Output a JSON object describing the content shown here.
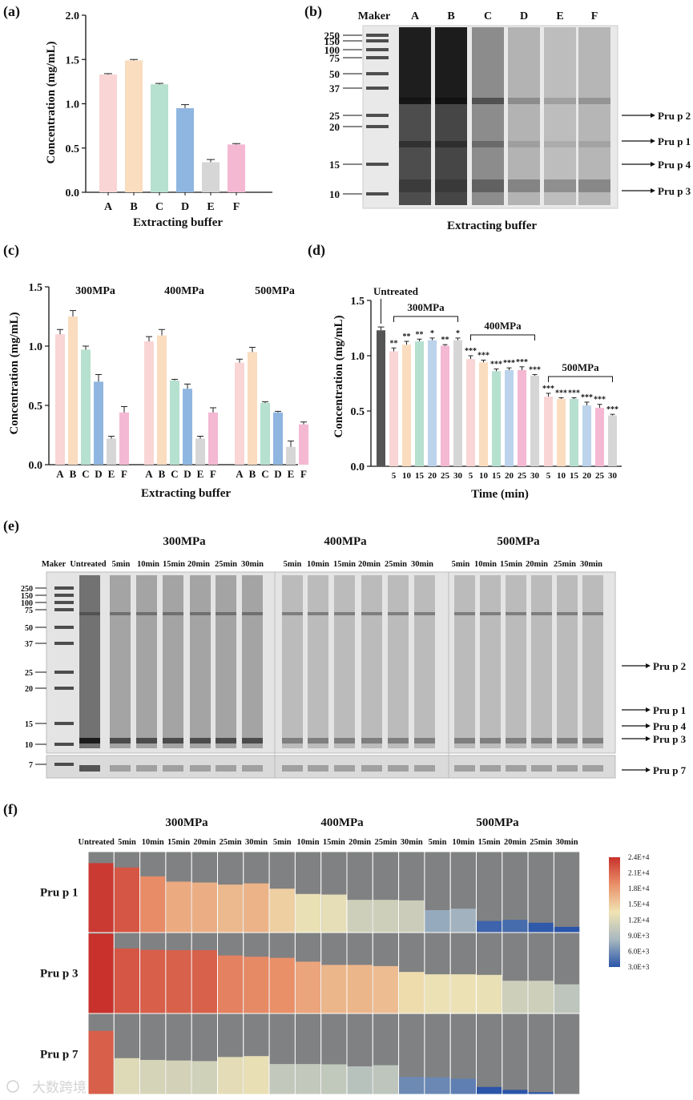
{
  "panels": {
    "a": {
      "label": "(a)"
    },
    "b": {
      "label": "(b)"
    },
    "c": {
      "label": "(c)"
    },
    "d": {
      "label": "(d)"
    },
    "e": {
      "label": "(e)"
    },
    "f": {
      "label": "(f)"
    }
  },
  "watermark": "大数跨境",
  "chart_data": [
    {
      "id": "a",
      "type": "bar",
      "title": "",
      "xlabel": "Extracting buffer",
      "ylabel": "Concentration (mg/mL)",
      "ylim": [
        0,
        2.0
      ],
      "yticks": [
        "0.0",
        "0.5",
        "1.0",
        "1.5",
        "2.0"
      ],
      "categories": [
        "A",
        "B",
        "C",
        "D",
        "E",
        "F"
      ],
      "values": [
        1.33,
        1.49,
        1.22,
        0.95,
        0.34,
        0.54
      ],
      "errors": [
        0.01,
        0.01,
        0.01,
        0.04,
        0.03,
        0.01
      ],
      "colors": [
        "#f9d5d6",
        "#fadcbf",
        "#b6e0cf",
        "#8fb6e0",
        "#d6d6d6",
        "#f4b8d3"
      ]
    },
    {
      "id": "b",
      "type": "gel",
      "xlabel": "Extracting buffer",
      "lanes": [
        "Maker",
        "A",
        "B",
        "C",
        "D",
        "E",
        "F"
      ],
      "markers": [
        "250",
        "150",
        "100",
        "75",
        "50",
        "37",
        "25",
        "20",
        "15",
        "10"
      ],
      "bands": [
        "Pru p 2",
        "Pru p 1",
        "Pru p 4",
        "Pru p 3"
      ]
    },
    {
      "id": "c",
      "type": "bar",
      "xlabel": "Extracting buffer",
      "ylabel": "Concentration (mg/mL)",
      "ylim": [
        0,
        1.5
      ],
      "yticks": [
        "0.0",
        "0.5",
        "1.0",
        "1.5"
      ],
      "categories": [
        "A",
        "B",
        "C",
        "D",
        "E",
        "F"
      ],
      "colors": [
        "#f9d5d6",
        "#fadcbf",
        "#b6e0cf",
        "#8fb6e0",
        "#d6d6d6",
        "#f4b8d3"
      ],
      "series": [
        {
          "name": "300MPa",
          "values": [
            1.1,
            1.25,
            0.97,
            0.7,
            0.22,
            0.44
          ],
          "errors": [
            0.04,
            0.05,
            0.03,
            0.06,
            0.02,
            0.05
          ]
        },
        {
          "name": "400MPa",
          "values": [
            1.04,
            1.09,
            0.71,
            0.64,
            0.22,
            0.44
          ],
          "errors": [
            0.04,
            0.05,
            0.01,
            0.04,
            0.02,
            0.04
          ]
        },
        {
          "name": "500MPa",
          "values": [
            0.86,
            0.95,
            0.52,
            0.44,
            0.15,
            0.34
          ],
          "errors": [
            0.03,
            0.04,
            0.01,
            0.01,
            0.05,
            0.02
          ]
        }
      ]
    },
    {
      "id": "d",
      "type": "bar",
      "xlabel": "Time (min)",
      "ylabel": "Concentration (mg/mL)",
      "ylim": [
        0,
        1.5
      ],
      "yticks": [
        "0.0",
        "0.5",
        "1.0",
        "1.5"
      ],
      "untreated": {
        "label": "Untreated",
        "value": 1.23,
        "error": 0.03,
        "color": "#555555"
      },
      "times": [
        "5",
        "10",
        "15",
        "20",
        "25",
        "30"
      ],
      "colors": [
        "#f9d5d6",
        "#fadcbf",
        "#b6e0cf",
        "#bcd3ec",
        "#f4b8d3",
        "#d6d6d6"
      ],
      "series": [
        {
          "name": "300MPa",
          "values": [
            1.04,
            1.1,
            1.13,
            1.14,
            1.09,
            1.14
          ],
          "errors": [
            0.03,
            0.03,
            0.02,
            0.02,
            0.01,
            0.02
          ],
          "sig": [
            "**",
            "**",
            "**",
            "*",
            "**",
            "*"
          ]
        },
        {
          "name": "400MPa",
          "values": [
            0.97,
            0.94,
            0.86,
            0.87,
            0.87,
            0.82
          ],
          "errors": [
            0.03,
            0.02,
            0.02,
            0.02,
            0.03,
            0.01
          ],
          "sig": [
            "***",
            "***",
            "***",
            "***",
            "***",
            "***"
          ]
        },
        {
          "name": "500MPa",
          "values": [
            0.63,
            0.61,
            0.61,
            0.55,
            0.53,
            0.46
          ],
          "errors": [
            0.03,
            0.01,
            0.01,
            0.03,
            0.03,
            0.01
          ],
          "sig": [
            "***",
            "***",
            "***",
            "***",
            "***",
            "***"
          ]
        }
      ]
    },
    {
      "id": "e",
      "type": "gel",
      "groups": [
        "300MPa",
        "400MPa",
        "500MPa"
      ],
      "lane_labels": [
        "Maker",
        "Untreated",
        "5min",
        "10min",
        "15min",
        "20min",
        "25min",
        "30min",
        "5min",
        "10min",
        "15min",
        "20min",
        "25min",
        "30min",
        "5min",
        "10min",
        "15min",
        "20min",
        "25min",
        "30min"
      ],
      "markers": [
        "250",
        "150",
        "100",
        "75",
        "50",
        "37",
        "25",
        "20",
        "15",
        "10",
        "7"
      ],
      "bands": [
        "Pru p 2",
        "Pru p 1",
        "Pru p 4",
        "Pru p 3",
        "Pru p 7"
      ]
    },
    {
      "id": "f",
      "type": "heatmap",
      "groups": [
        "300MPa",
        "400MPa",
        "500MPa"
      ],
      "columns": [
        "Untreated",
        "5min",
        "10min",
        "15min",
        "20min",
        "25min",
        "30min",
        "5min",
        "10min",
        "15min",
        "20min",
        "25min",
        "30min",
        "5min",
        "10min",
        "15min",
        "20min",
        "25min",
        "30min"
      ],
      "rows": [
        {
          "name": "Pru p 1",
          "values": [
            23500,
            22000,
            19000,
            17200,
            16900,
            16200,
            16600,
            14800,
            13000,
            12800,
            11000,
            11000,
            10800,
            7500,
            8000,
            3800,
            4200,
            3200,
            1800
          ]
        },
        {
          "name": "Pru p 3",
          "values": [
            27000,
            22000,
            21500,
            21400,
            21400,
            19600,
            19200,
            18800,
            17500,
            16400,
            16400,
            16000,
            14000,
            13200,
            13200,
            13000,
            11000,
            11000,
            9800
          ]
        },
        {
          "name": "Pru p 7",
          "values": [
            21500,
            12200,
            11600,
            11400,
            11200,
            12600,
            12900,
            10200,
            10200,
            10100,
            9400,
            9800,
            5800,
            5700,
            5200,
            2400,
            1400,
            600,
            0
          ]
        }
      ],
      "color_range": [
        3000,
        24000
      ],
      "colorbar_ticks": [
        "2.4E+4",
        "2.1E+4",
        "1.8E+4",
        "1.5E+4",
        "1.2E+4",
        "9.0E+3",
        "6.0E+3",
        "3.0E+3"
      ]
    }
  ]
}
